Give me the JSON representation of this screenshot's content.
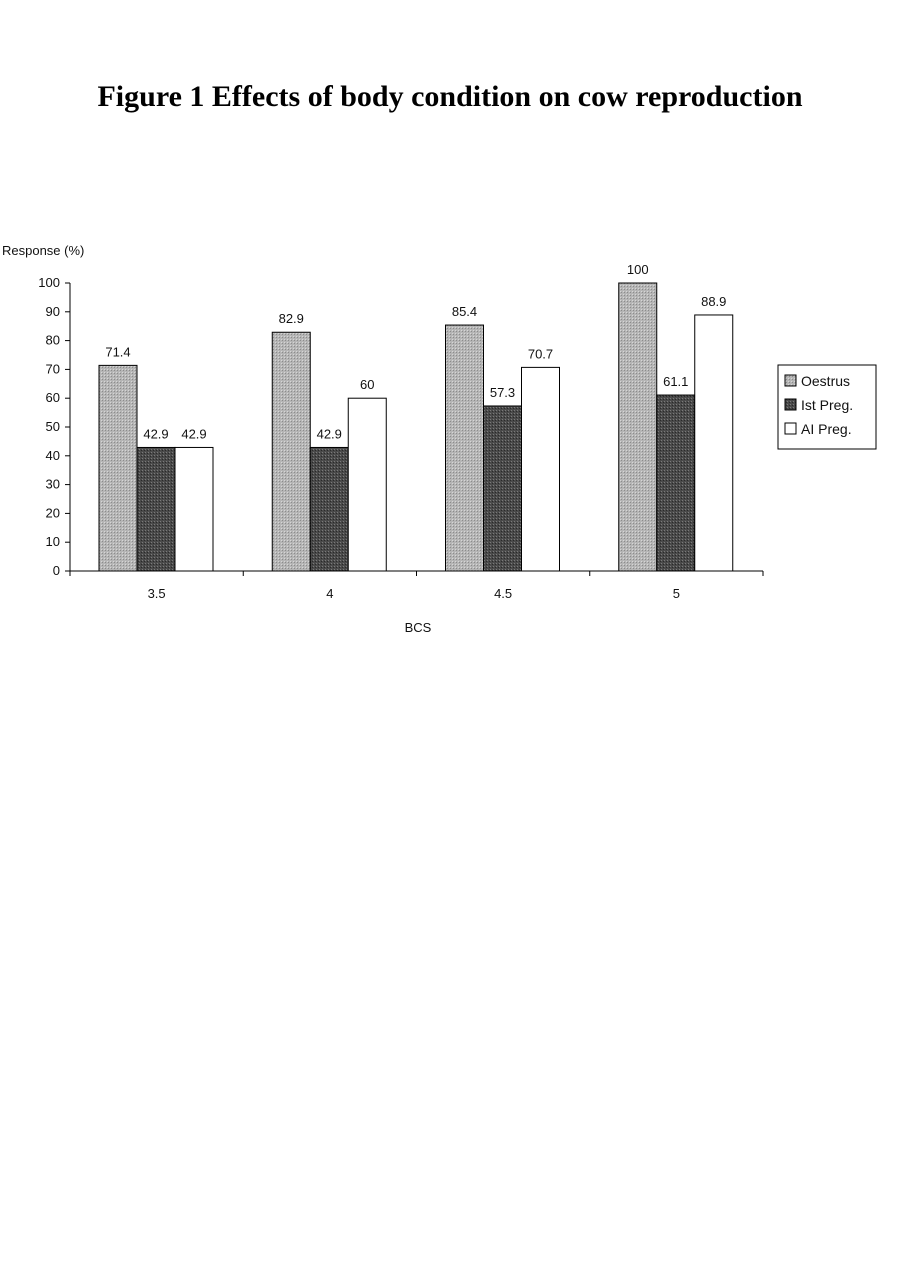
{
  "title": "Figure 1  Effects of body condition on cow reproduction",
  "chart_data": {
    "type": "bar",
    "title": "Figure 1  Effects of body condition on cow reproduction",
    "xlabel": "BCS",
    "ylabel": "Response (%)",
    "categories": [
      "3.5",
      "4",
      "4.5",
      "5"
    ],
    "ylim": [
      0,
      100
    ],
    "yticks": [
      0,
      10,
      20,
      30,
      40,
      50,
      60,
      70,
      80,
      90,
      100
    ],
    "grid": false,
    "legend_position": "right",
    "series": [
      {
        "name": "Oestrus",
        "values": [
          71.4,
          82.9,
          85.4,
          100
        ],
        "labels": [
          "71.4",
          "82.9",
          "85.4",
          "100"
        ],
        "color": "#b5b5b5"
      },
      {
        "name": "Ist Preg.",
        "values": [
          42.9,
          42.9,
          57.3,
          61.1
        ],
        "labels": [
          "42.9",
          "42.9",
          "57.3",
          "61.1"
        ],
        "color": "#4a4a4a"
      },
      {
        "name": "AI Preg.",
        "values": [
          42.9,
          60,
          70.7,
          88.9
        ],
        "labels": [
          "42.9",
          "60",
          "70.7",
          "88.9"
        ],
        "color": "#ffffff"
      }
    ]
  }
}
